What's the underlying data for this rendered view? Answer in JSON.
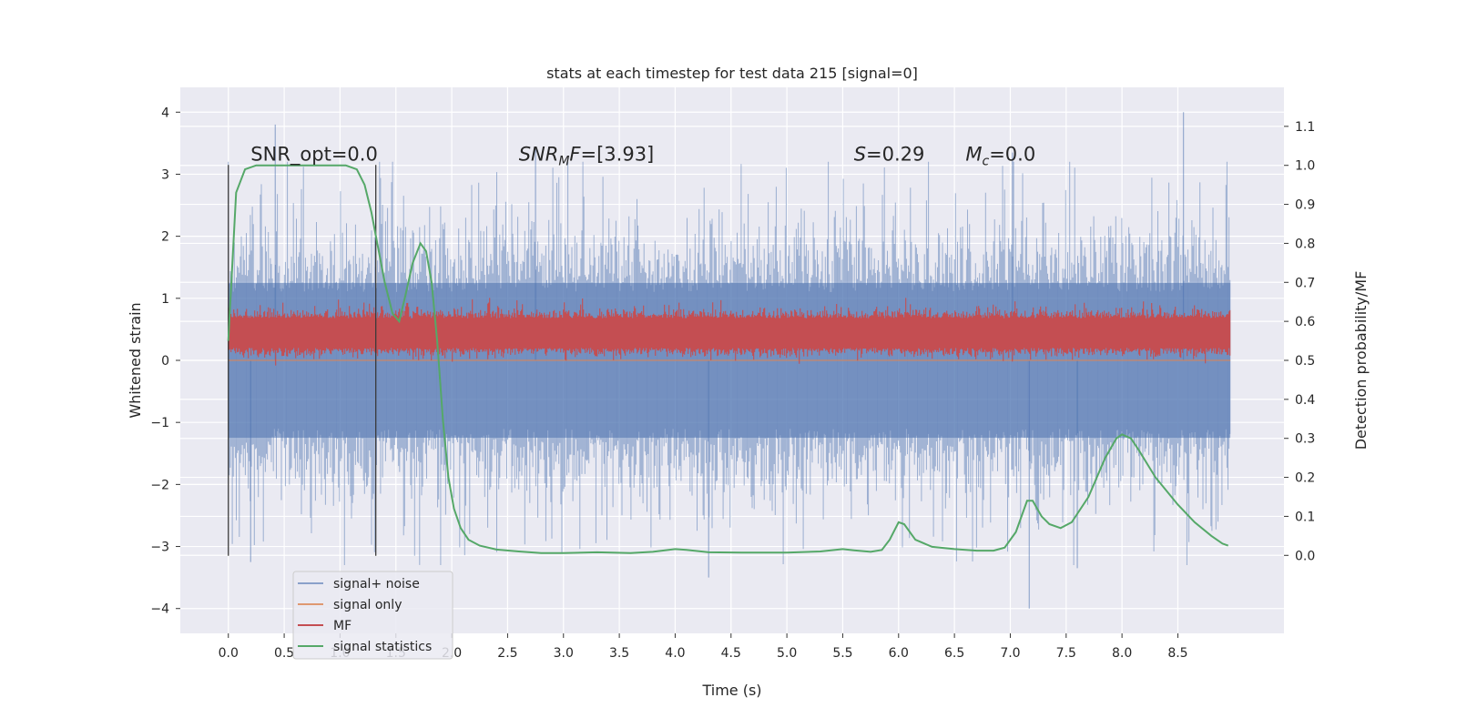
{
  "chart_data": {
    "type": "line",
    "title": "stats at each timestep for test data 215 [signal=0]",
    "xlabel": "Time (s)",
    "ylabel_left": "Whitened strain",
    "ylabel_right": "Detection probability/MF",
    "xlim": [
      -0.43,
      9.45
    ],
    "ylim_left": [
      -4.4,
      4.4
    ],
    "ylim_right": [
      -0.2,
      1.2
    ],
    "xticks": [
      0.0,
      0.5,
      1.0,
      1.5,
      2.0,
      2.5,
      3.0,
      3.5,
      4.0,
      4.5,
      5.0,
      5.5,
      6.0,
      6.5,
      7.0,
      7.5,
      8.0,
      8.5
    ],
    "xtick_labels": [
      "0.0",
      "0.5",
      "1.0",
      "1.5",
      "2.0",
      "2.5",
      "3.0",
      "3.5",
      "4.0",
      "4.5",
      "5.0",
      "5.5",
      "6.0",
      "6.5",
      "7.0",
      "7.5",
      "8.0",
      "8.5"
    ],
    "yticks_left": [
      -4,
      -3,
      -2,
      -1,
      0,
      1,
      2,
      3,
      4
    ],
    "ytick_labels_left": [
      "−4",
      "−3",
      "−2",
      "−1",
      "0",
      "1",
      "2",
      "3",
      "4"
    ],
    "yticks_right": [
      0.0,
      0.1,
      0.2,
      0.3,
      0.4,
      0.5,
      0.6,
      0.7,
      0.8,
      0.9,
      1.0,
      1.1
    ],
    "ytick_labels_right": [
      "0.0",
      "0.1",
      "0.2",
      "0.3",
      "0.4",
      "0.5",
      "0.6",
      "0.7",
      "0.8",
      "0.9",
      "1.0",
      "1.1"
    ],
    "grid": true,
    "legend_position": "lower-left",
    "series": [
      {
        "name": "signal+ noise",
        "color": "#4c72b0",
        "kind": "dense noise strain",
        "x_range": [
          0.0,
          8.97
        ],
        "band_left_units": [
          -1.25,
          1.25
        ],
        "spike_extremes": [
          -4.0,
          3.8
        ]
      },
      {
        "name": "signal only",
        "color": "#dd8452",
        "kind": "flat zero strain"
      },
      {
        "name": "MF",
        "color": "#c44e52",
        "kind": "dense matched filter output",
        "x_range": [
          0.0,
          8.97
        ],
        "band_right_units": [
          0.52,
          0.62
        ],
        "peak_right_units": 0.66
      },
      {
        "name": "signal statistics",
        "color": "#55a868",
        "x": [
          0.0,
          0.07,
          0.15,
          0.25,
          0.35,
          0.5,
          0.7,
          0.9,
          1.05,
          1.15,
          1.22,
          1.28,
          1.32,
          1.4,
          1.47,
          1.53,
          1.58,
          1.65,
          1.72,
          1.77,
          1.82,
          1.87,
          1.92,
          1.97,
          2.02,
          2.08,
          2.15,
          2.25,
          2.4,
          2.6,
          2.8,
          3.0,
          3.3,
          3.6,
          3.8,
          4.0,
          4.1,
          4.3,
          4.6,
          5.0,
          5.3,
          5.5,
          5.6,
          5.75,
          5.85,
          5.92,
          6.0,
          6.05,
          6.15,
          6.3,
          6.5,
          6.7,
          6.85,
          6.95,
          7.05,
          7.15,
          7.2,
          7.28,
          7.35,
          7.45,
          7.55,
          7.7,
          7.85,
          7.95,
          8.0,
          8.08,
          8.15,
          8.3,
          8.5,
          8.65,
          8.8,
          8.9,
          8.95
        ],
        "values": [
          0.55,
          0.93,
          0.99,
          1.0,
          1.0,
          1.0,
          1.0,
          1.0,
          1.0,
          0.99,
          0.95,
          0.88,
          0.82,
          0.7,
          0.62,
          0.6,
          0.66,
          0.75,
          0.8,
          0.78,
          0.7,
          0.55,
          0.35,
          0.2,
          0.12,
          0.07,
          0.04,
          0.025,
          0.015,
          0.01,
          0.006,
          0.006,
          0.008,
          0.006,
          0.009,
          0.016,
          0.014,
          0.008,
          0.007,
          0.007,
          0.01,
          0.016,
          0.013,
          0.009,
          0.014,
          0.04,
          0.085,
          0.08,
          0.04,
          0.022,
          0.016,
          0.012,
          0.012,
          0.02,
          0.06,
          0.14,
          0.14,
          0.1,
          0.08,
          0.07,
          0.085,
          0.15,
          0.25,
          0.3,
          0.31,
          0.3,
          0.27,
          0.2,
          0.13,
          0.085,
          0.05,
          0.03,
          0.025
        ]
      }
    ],
    "vertical_markers": [
      0.0,
      1.32
    ],
    "annotations": [
      {
        "text": "SNR_opt=0.0",
        "x": 0.2
      },
      {
        "text": "SNRMF=[3.93]",
        "x": 2.6
      },
      {
        "text": "S=0.29",
        "x": 5.6
      },
      {
        "text": "Mc=0.0",
        "x": 6.6
      }
    ],
    "annotation_y_left": 3.22
  }
}
